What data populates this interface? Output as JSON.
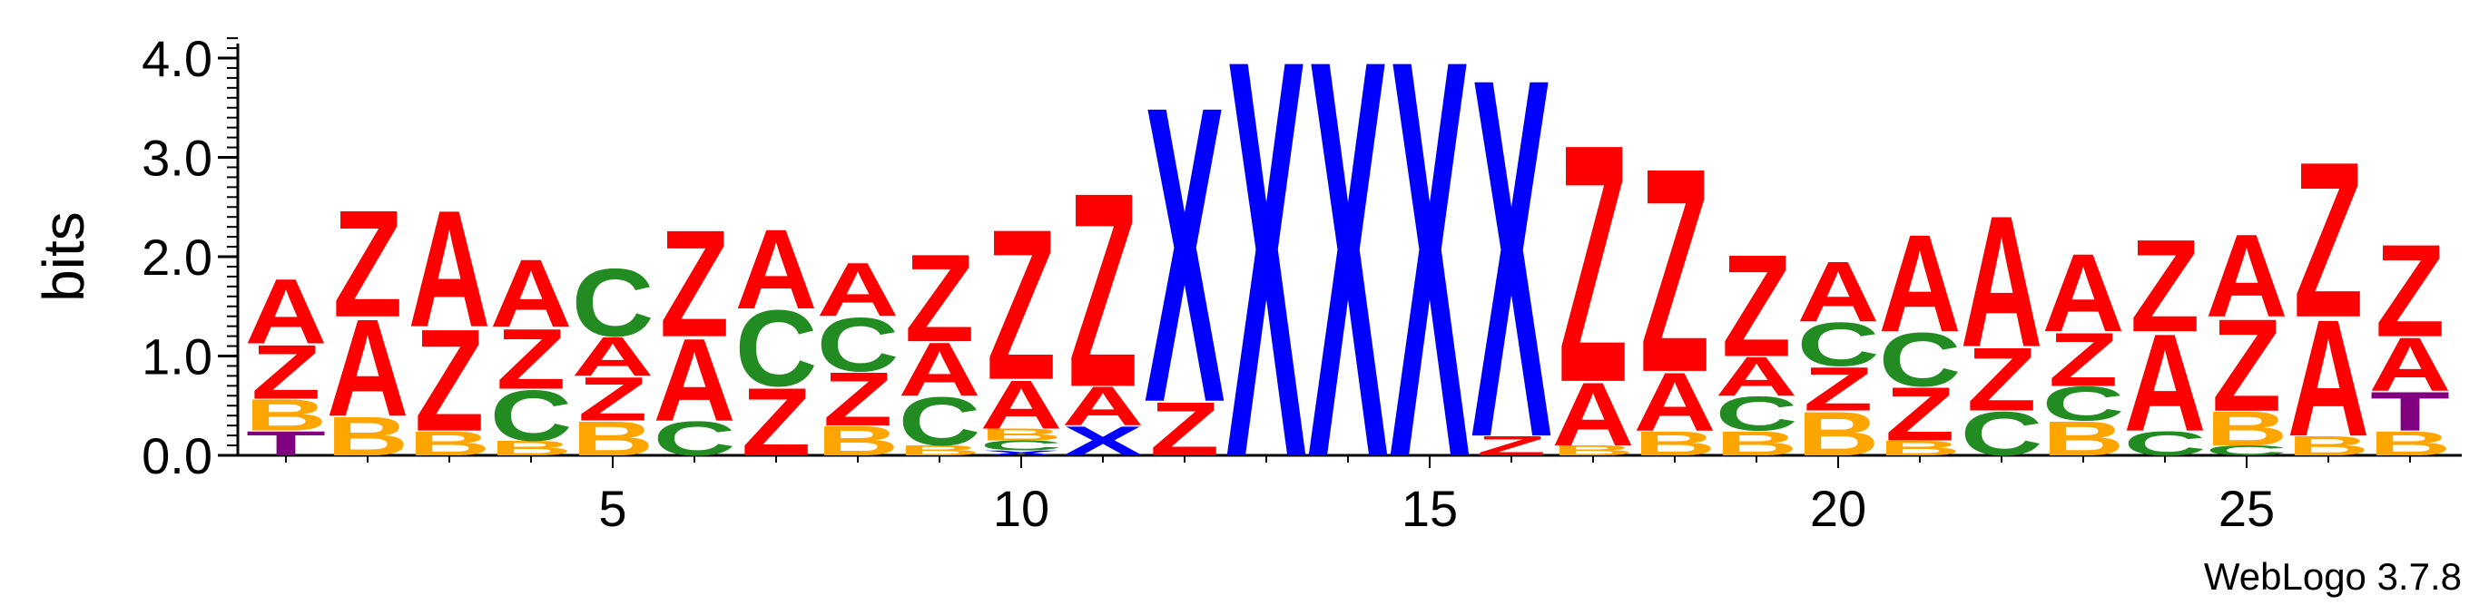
{
  "chart_data": {
    "type": "sequence-logo",
    "ylabel": "bits",
    "ylim": [
      0,
      4.0
    ],
    "y_ticks": [
      "0.0",
      "1.0",
      "2.0",
      "3.0",
      "4.0"
    ],
    "x_ticks": [
      5,
      10,
      15,
      20,
      25
    ],
    "positions_count": 27,
    "footer": "WebLogo 3.7.8",
    "colors": {
      "A": "#ff0000",
      "Z": "#ff0000",
      "B": "#ffa500",
      "C": "#228b22",
      "X": "#0000ff",
      "T": "#800080"
    },
    "columns": [
      {
        "pos": 1,
        "letters": [
          [
            "T",
            0.25
          ],
          [
            "B",
            0.32
          ],
          [
            "Z",
            0.56
          ],
          [
            "A",
            0.67
          ]
        ]
      },
      {
        "pos": 2,
        "letters": [
          [
            "B",
            0.4
          ],
          [
            "A",
            1.0
          ],
          [
            "Z",
            1.1
          ]
        ]
      },
      {
        "pos": 3,
        "letters": [
          [
            "B",
            0.25
          ],
          [
            "Z",
            1.05
          ],
          [
            "A",
            1.2
          ]
        ]
      },
      {
        "pos": 4,
        "letters": [
          [
            "B",
            0.15
          ],
          [
            "C",
            0.52
          ],
          [
            "Z",
            0.62
          ],
          [
            "A",
            0.7
          ]
        ]
      },
      {
        "pos": 5,
        "letters": [
          [
            "B",
            0.35
          ],
          [
            "Z",
            0.45
          ],
          [
            "A",
            0.4
          ],
          [
            "C",
            0.7
          ]
        ]
      },
      {
        "pos": 6,
        "letters": [
          [
            "C",
            0.35
          ],
          [
            "A",
            0.85
          ],
          [
            "Z",
            1.1
          ]
        ]
      },
      {
        "pos": 7,
        "letters": [
          [
            "Z",
            0.7
          ],
          [
            "C",
            0.78
          ],
          [
            "A",
            0.82
          ]
        ]
      },
      {
        "pos": 8,
        "letters": [
          [
            "B",
            0.3
          ],
          [
            "Z",
            0.55
          ],
          [
            "C",
            0.55
          ],
          [
            "A",
            0.55
          ]
        ]
      },
      {
        "pos": 9,
        "letters": [
          [
            "B",
            0.1
          ],
          [
            "C",
            0.5
          ],
          [
            "A",
            0.55
          ],
          [
            "Z",
            0.9
          ]
        ]
      },
      {
        "pos": 10,
        "letters": [
          [
            "X",
            0.05
          ],
          [
            "C",
            0.1
          ],
          [
            "B",
            0.12
          ],
          [
            "A",
            0.5
          ],
          [
            "Z",
            1.55
          ]
        ]
      },
      {
        "pos": 11,
        "letters": [
          [
            "X",
            0.3
          ],
          [
            "A",
            0.4
          ],
          [
            "Z",
            2.0
          ]
        ]
      },
      {
        "pos": 12,
        "letters": [
          [
            "Z",
            0.55
          ],
          [
            "X",
            3.05
          ]
        ]
      },
      {
        "pos": 13,
        "letters": [
          [
            "X",
            4.1
          ]
        ]
      },
      {
        "pos": 14,
        "letters": [
          [
            "X",
            4.1
          ]
        ]
      },
      {
        "pos": 15,
        "letters": [
          [
            "X",
            4.1
          ]
        ]
      },
      {
        "pos": 16,
        "letters": [
          [
            "Z",
            0.2
          ],
          [
            "X",
            3.7
          ]
        ]
      },
      {
        "pos": 17,
        "letters": [
          [
            "B",
            0.1
          ],
          [
            "A",
            0.65
          ],
          [
            "Z",
            2.45
          ]
        ]
      },
      {
        "pos": 18,
        "letters": [
          [
            "B",
            0.25
          ],
          [
            "A",
            0.6
          ],
          [
            "Z",
            2.1
          ]
        ]
      },
      {
        "pos": 19,
        "letters": [
          [
            "B",
            0.25
          ],
          [
            "C",
            0.35
          ],
          [
            "A",
            0.4
          ],
          [
            "Z",
            1.05
          ]
        ]
      },
      {
        "pos": 20,
        "letters": [
          [
            "B",
            0.45
          ],
          [
            "Z",
            0.45
          ],
          [
            "C",
            0.45
          ],
          [
            "A",
            0.62
          ]
        ]
      },
      {
        "pos": 21,
        "letters": [
          [
            "B",
            0.15
          ],
          [
            "Z",
            0.55
          ],
          [
            "C",
            0.55
          ],
          [
            "A",
            1.0
          ]
        ]
      },
      {
        "pos": 22,
        "letters": [
          [
            "C",
            0.45
          ],
          [
            "Z",
            0.65
          ],
          [
            "A",
            1.35
          ]
        ]
      },
      {
        "pos": 23,
        "letters": [
          [
            "B",
            0.35
          ],
          [
            "C",
            0.35
          ],
          [
            "Z",
            0.55
          ],
          [
            "A",
            0.8
          ]
        ]
      },
      {
        "pos": 24,
        "letters": [
          [
            "C",
            0.25
          ],
          [
            "A",
            1.0
          ],
          [
            "Z",
            0.95
          ]
        ]
      },
      {
        "pos": 25,
        "letters": [
          [
            "C",
            0.1
          ],
          [
            "B",
            0.35
          ],
          [
            "Z",
            0.95
          ],
          [
            "A",
            0.85
          ]
        ]
      },
      {
        "pos": 26,
        "letters": [
          [
            "B",
            0.2
          ],
          [
            "A",
            1.2
          ],
          [
            "Z",
            1.6
          ]
        ]
      },
      {
        "pos": 27,
        "letters": [
          [
            "B",
            0.25
          ],
          [
            "T",
            0.4
          ],
          [
            "A",
            0.55
          ],
          [
            "Z",
            0.95
          ]
        ]
      }
    ]
  }
}
